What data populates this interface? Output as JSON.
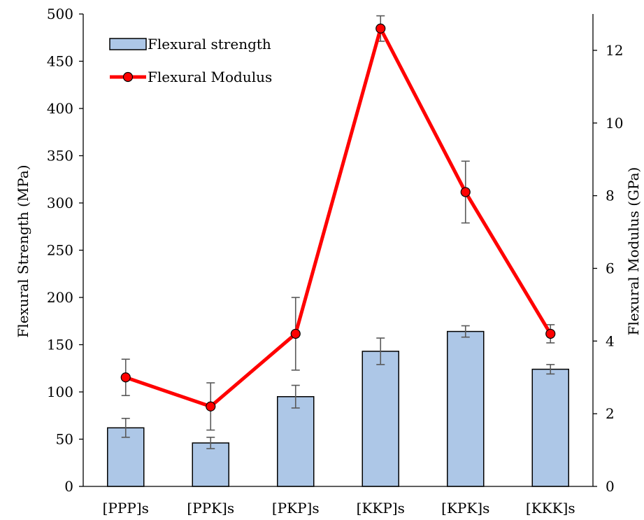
{
  "chart_data": {
    "type": "bar+line",
    "title": "",
    "categories": [
      "[PPP]s",
      "[PPK]s",
      "[PKP]s",
      "[KKP]s",
      "[KPK]s",
      "[KKK]s"
    ],
    "series": [
      {
        "name": "Flexural strength",
        "type": "bar",
        "axis": "left",
        "values": [
          62,
          46,
          95,
          143,
          164,
          124
        ],
        "errors": [
          10,
          6,
          12,
          14,
          6,
          5
        ],
        "color": "#adc7e7",
        "edge_color": "#000000"
      },
      {
        "name": "Flexural Modulus",
        "type": "line",
        "axis": "right",
        "values": [
          3.0,
          2.2,
          4.2,
          12.6,
          8.1,
          4.2
        ],
        "errors": [
          0.5,
          0.65,
          1.0,
          0.35,
          0.85,
          0.25
        ],
        "color": "#ff0000",
        "marker_color": "#ff0000"
      }
    ],
    "ylabel_left": "Flexural Strength (MPa)",
    "ylabel_right": "Flexural Modulus (GPa)",
    "ylim_left": [
      0,
      500
    ],
    "ylim_right": [
      0,
      13
    ],
    "yticks_left": [
      "0",
      "50",
      "100",
      "150",
      "200",
      "250",
      "300",
      "350",
      "400",
      "450",
      "500"
    ],
    "yticks_right": [
      "0",
      "2",
      "4",
      "6",
      "8",
      "10",
      "12"
    ],
    "grid": false,
    "legend_position": "top-left",
    "error_bar_color": "#595959"
  }
}
